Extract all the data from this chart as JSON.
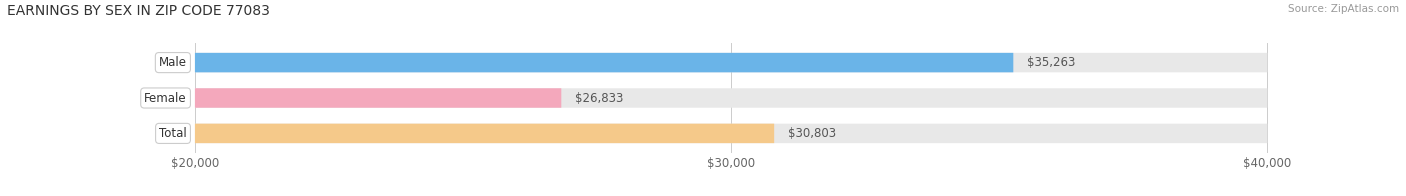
{
  "title": "EARNINGS BY SEX IN ZIP CODE 77083",
  "source": "Source: ZipAtlas.com",
  "categories": [
    "Male",
    "Female",
    "Total"
  ],
  "values": [
    35263,
    26833,
    30803
  ],
  "bar_colors": [
    "#6ab4e8",
    "#f4a8bc",
    "#f5c98a"
  ],
  "bar_bg_color": "#e8e8e8",
  "xmin": 20000,
  "xmax": 40000,
  "xticks": [
    20000,
    30000,
    40000
  ],
  "xtick_labels": [
    "$20,000",
    "$30,000",
    "$40,000"
  ],
  "value_labels": [
    "$35,263",
    "$26,833",
    "$30,803"
  ],
  "background_color": "#ffffff",
  "title_fontsize": 10,
  "tick_fontsize": 8.5,
  "label_fontsize": 8.5,
  "value_fontsize": 8.5,
  "source_fontsize": 7.5
}
